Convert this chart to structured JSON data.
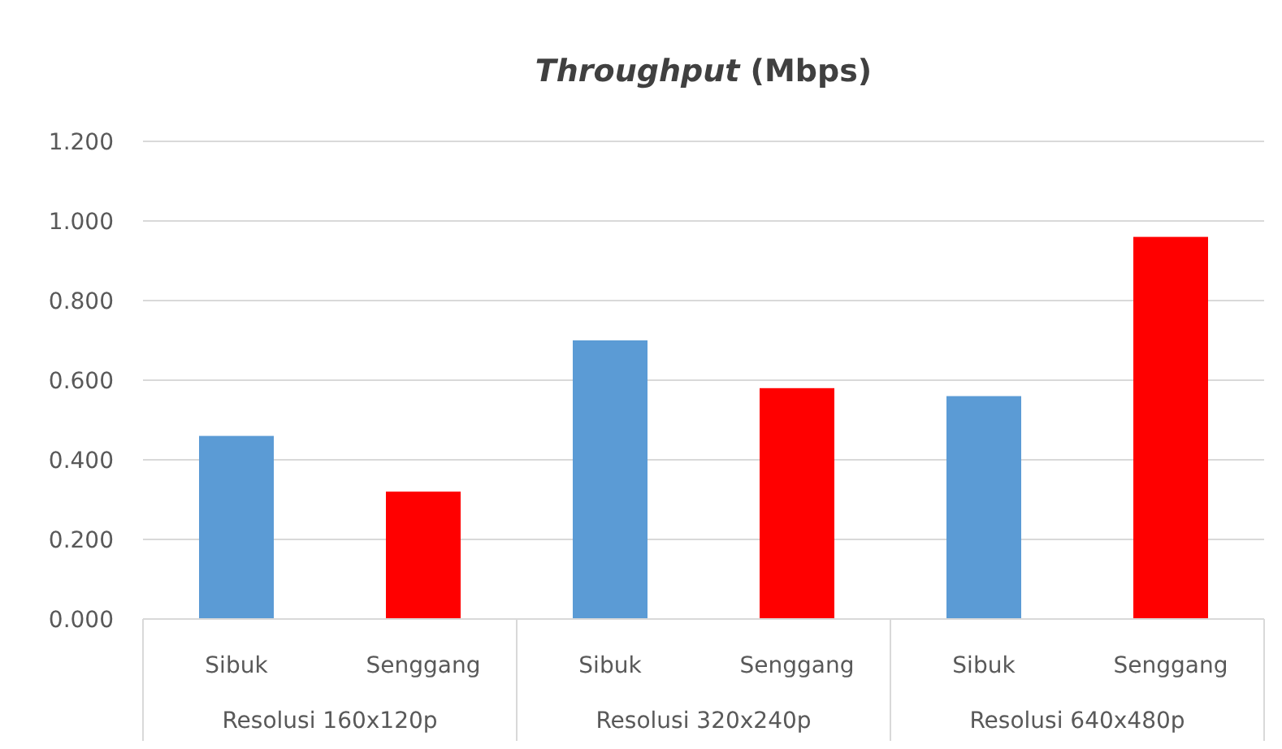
{
  "chart_data": {
    "type": "bar",
    "title": "Throughput (Mbps)",
    "categories": [
      "Sibuk",
      "Senggang",
      "Sibuk",
      "Senggang",
      "Sibuk",
      "Senggang"
    ],
    "values": [
      0.46,
      0.32,
      0.7,
      0.58,
      0.56,
      0.96
    ],
    "colors": [
      "#5b9bd5",
      "#ff0000",
      "#5b9bd5",
      "#ff0000",
      "#5b9bd5",
      "#ff0000"
    ],
    "annotations": [
      "Resolusi 160x120p",
      "Resolusi 320x240p",
      "Resolusi 640x480p"
    ],
    "ylim": [
      0,
      1.2
    ],
    "yticks": [
      {
        "value": 0,
        "label": "0.000"
      },
      {
        "value": 0.2,
        "label": "0.200"
      },
      {
        "value": 0.4,
        "label": "0.400"
      },
      {
        "value": 0.6,
        "label": "0.600"
      },
      {
        "value": 0.8,
        "label": "0.800"
      },
      {
        "value": 1,
        "label": "1.000"
      },
      {
        "value": 1.2,
        "label": "1.200"
      }
    ],
    "grid": "y"
  }
}
